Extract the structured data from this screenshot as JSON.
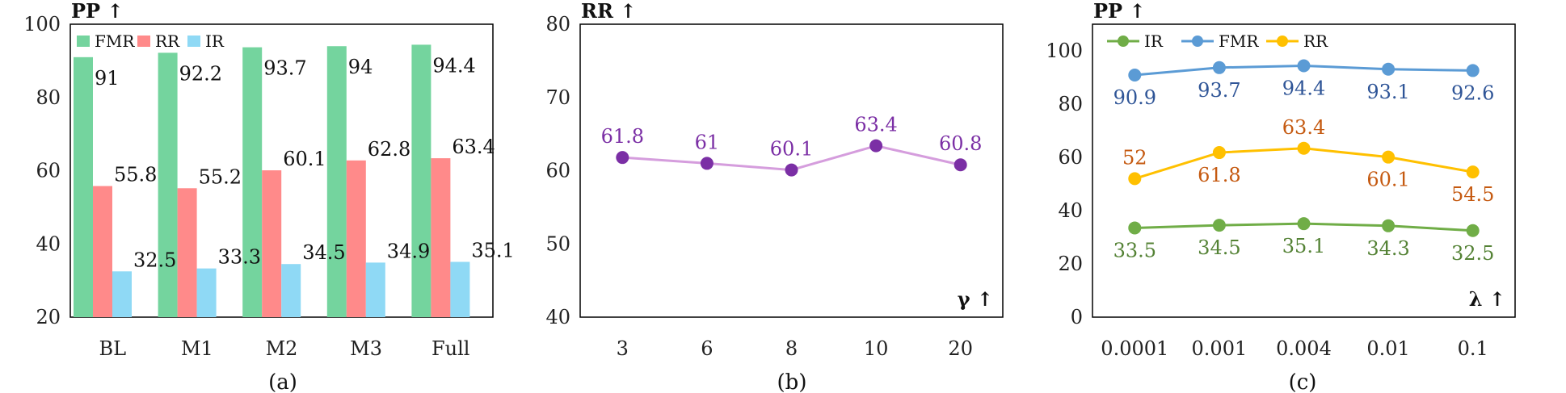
{
  "chart_data": [
    {
      "type": "bar",
      "caption": "(a)",
      "ylabel": "PP ↑",
      "ylim": [
        20,
        100
      ],
      "yticks": [
        20,
        40,
        60,
        80,
        100
      ],
      "categories": [
        "BL",
        "M1",
        "M2",
        "M3",
        "Full"
      ],
      "series": [
        {
          "name": "FMR",
          "color": "#74d49e",
          "values": [
            91,
            92.2,
            93.7,
            94,
            94.4
          ]
        },
        {
          "name": "RR",
          "color": "#ff8a8a",
          "values": [
            55.8,
            55.2,
            60.1,
            62.8,
            63.4
          ]
        },
        {
          "name": "IR",
          "color": "#8fd9f5",
          "values": [
            32.5,
            33.3,
            34.5,
            34.9,
            35.1
          ]
        }
      ],
      "legend": "top-left",
      "grid": false
    },
    {
      "type": "line",
      "caption": "(b)",
      "ylabel": "RR ↑",
      "xlabel": "γ ↑",
      "ylim": [
        40,
        80
      ],
      "yticks": [
        40,
        50,
        60,
        70,
        80
      ],
      "categories": [
        "3",
        "6",
        "8",
        "10",
        "20"
      ],
      "series": [
        {
          "color": "#d59ddd",
          "marker_color": "#7b2fa5",
          "label_color": "#7b2fa5",
          "values": [
            61.8,
            61,
            60.1,
            63.4,
            60.8
          ]
        }
      ],
      "grid": false
    },
    {
      "type": "line",
      "caption": "(c)",
      "ylabel": "PP ↑",
      "xlabel": "λ ↑",
      "ylim": [
        0,
        110
      ],
      "yticks": [
        0,
        20,
        40,
        60,
        80,
        100
      ],
      "categories": [
        "0.0001",
        "0.001",
        "0.004",
        "0.01",
        "0.1"
      ],
      "series": [
        {
          "name": "IR",
          "color": "#70ad47",
          "label_color": "#548235",
          "label_pos": "below",
          "values": [
            33.5,
            34.5,
            35.1,
            34.3,
            32.5
          ]
        },
        {
          "name": "FMR",
          "color": "#5b9bd5",
          "label_color": "#2f5597",
          "label_pos": "below",
          "values": [
            90.9,
            93.7,
            94.4,
            93.1,
            92.6
          ]
        },
        {
          "name": "RR",
          "color": "#ffc000",
          "label_color": "#c55a11",
          "label_pos": "mixed",
          "values": [
            52,
            61.8,
            63.4,
            60.1,
            54.5
          ]
        }
      ],
      "legend": "top-left",
      "grid": false
    }
  ]
}
